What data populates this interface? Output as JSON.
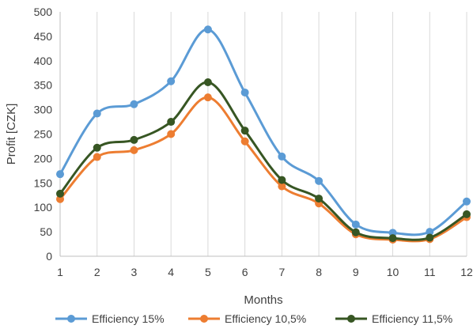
{
  "chart_data": {
    "type": "line",
    "title": "",
    "xlabel": "Months",
    "ylabel": "Profit [CZK]",
    "x": [
      1,
      2,
      3,
      4,
      5,
      6,
      7,
      8,
      9,
      10,
      11,
      12
    ],
    "xlim": [
      1,
      12
    ],
    "ylim": [
      0,
      500
    ],
    "yticks": [
      0,
      50,
      100,
      150,
      200,
      250,
      300,
      350,
      400,
      450,
      500
    ],
    "grid": "vertical",
    "legend_position": "bottom",
    "series": [
      {
        "name": "Efficiency 15%",
        "color": "#5B9BD5",
        "values": [
          168,
          292,
          311,
          358,
          464,
          335,
          204,
          154,
          65,
          48,
          50,
          112
        ]
      },
      {
        "name": "Efficiency 10,5%",
        "color": "#ED7D31",
        "values": [
          117,
          203,
          217,
          250,
          325,
          235,
          143,
          108,
          45,
          34,
          35,
          80
        ]
      },
      {
        "name": "Efficiency 11,5%",
        "color": "#375623",
        "values": [
          128,
          222,
          238,
          275,
          356,
          257,
          156,
          118,
          49,
          37,
          38,
          86
        ]
      }
    ]
  }
}
